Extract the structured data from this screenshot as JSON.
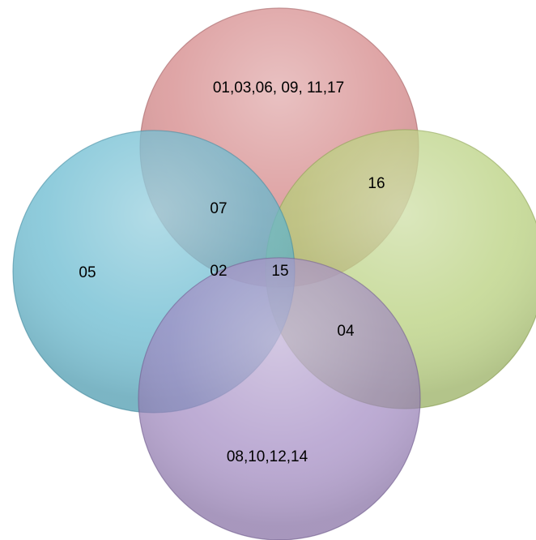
{
  "diagram": {
    "circles": [
      {
        "key": "top",
        "color": "#d07b7d"
      },
      {
        "key": "left",
        "color": "#5bb4cc"
      },
      {
        "key": "right",
        "color": "#b2cc71"
      },
      {
        "key": "bottom",
        "color": "#9a7fbd"
      }
    ],
    "labels": {
      "top_only": "01,03,06, 09, 11,17",
      "top_right": "16",
      "top_left": "07",
      "left_only": "05",
      "center_left": "02",
      "center": "15",
      "right_bottom": "04",
      "bottom_only": "08,10,12,14"
    }
  }
}
